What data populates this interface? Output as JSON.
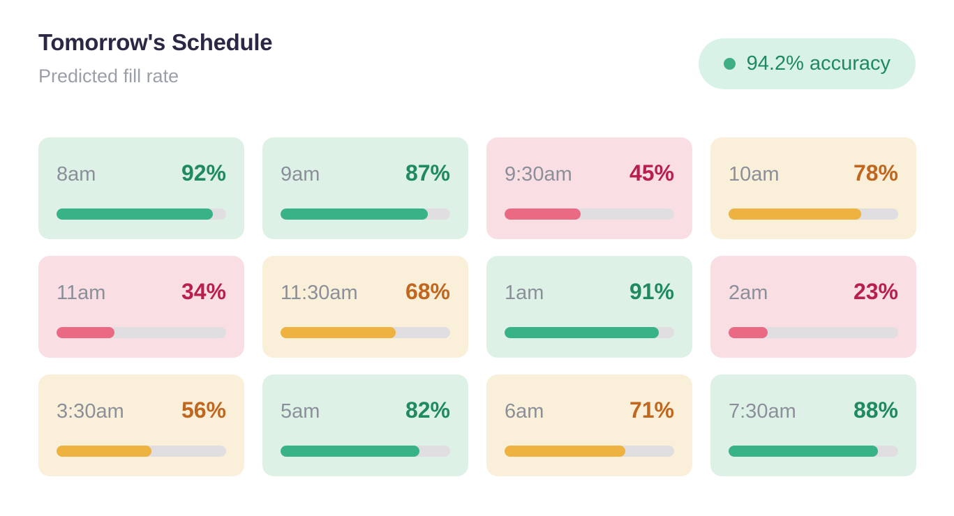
{
  "header": {
    "title": "Tomorrow's Schedule",
    "subtitle": "Predicted fill rate"
  },
  "badge": {
    "label": "94.2% accuracy",
    "dot_icon": "status-dot"
  },
  "cards": [
    {
      "time": "8am",
      "percent": "92%",
      "value": 92,
      "status": "high"
    },
    {
      "time": "9am",
      "percent": "87%",
      "value": 87,
      "status": "high"
    },
    {
      "time": "9:30am",
      "percent": "45%",
      "value": 45,
      "status": "low"
    },
    {
      "time": "10am",
      "percent": "78%",
      "value": 78,
      "status": "mid"
    },
    {
      "time": "11am",
      "percent": "34%",
      "value": 34,
      "status": "low"
    },
    {
      "time": "11:30am",
      "percent": "68%",
      "value": 68,
      "status": "mid"
    },
    {
      "time": "1am",
      "percent": "91%",
      "value": 91,
      "status": "high"
    },
    {
      "time": "2am",
      "percent": "23%",
      "value": 23,
      "status": "low"
    },
    {
      "time": "3:30am",
      "percent": "56%",
      "value": 56,
      "status": "mid"
    },
    {
      "time": "5am",
      "percent": "82%",
      "value": 82,
      "status": "high"
    },
    {
      "time": "6am",
      "percent": "71%",
      "value": 71,
      "status": "mid"
    },
    {
      "time": "7:30am",
      "percent": "88%",
      "value": 88,
      "status": "high"
    }
  ],
  "colors": {
    "title": "#2b2845",
    "subtitle": "#9b9faa",
    "time_label": "#8b8f99",
    "high_bg": "#def1e7",
    "high_text": "#1e8a5e",
    "high_bar": "#38b287",
    "low_bg": "#f9dee4",
    "low_text": "#b81f4e",
    "low_bar": "#e96a82",
    "mid_bg": "#faf0da",
    "mid_text": "#bf671f",
    "mid_bar": "#edb23f",
    "track": "#e0dee1",
    "badge_bg": "#d9f2e7",
    "badge_dot": "#3fae84",
    "badge_text": "#1d8a63"
  }
}
